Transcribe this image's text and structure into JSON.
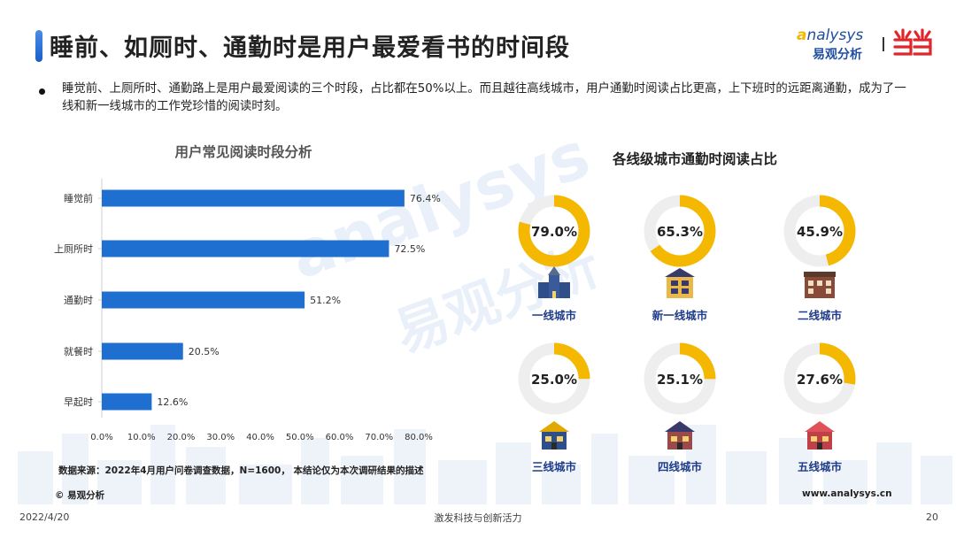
{
  "title": "睡前、如厕时、通勤时是用户最爱看书的时间段",
  "brand": {
    "logo_en_prefix": "a",
    "logo_en_rest": "nalysys",
    "logo_cn": "易观分析",
    "partner_logo_icon": "dangdang-logo-icon",
    "accent_color": "#1f6fd1"
  },
  "bullet": "睡觉前、上厕所时、通勤路上是用户最爱阅读的三个时段，占比都在50%以上。而且越往高线城市，用户通勤时阅读占比更高，上下班时的远距离通勤，成为了一线和新一线城市的工作党珍惜的阅读时刻。",
  "chart_data": [
    {
      "type": "bar",
      "orientation": "horizontal",
      "title": "用户常见阅读时段分析",
      "categories": [
        "睡觉前",
        "上厕所时",
        "通勤时",
        "就餐时",
        "早起时"
      ],
      "values": [
        76.4,
        72.5,
        51.2,
        20.5,
        12.6
      ],
      "value_labels": [
        "76.4%",
        "72.5%",
        "51.2%",
        "20.5%",
        "12.6%"
      ],
      "x_ticks": [
        "0.0%",
        "10.0%",
        "20.0%",
        "30.0%",
        "40.0%",
        "50.0%",
        "60.0%",
        "70.0%",
        "80.0%"
      ],
      "xlim": [
        0,
        80
      ],
      "bar_color": "#1f6fd1",
      "grid": false
    },
    {
      "type": "pie",
      "variant": "donut",
      "title": "各线级城市通勤时阅读占比",
      "items": [
        {
          "label": "一线城市",
          "value": 79.0,
          "text": "79.0%",
          "icon": "church-building-icon"
        },
        {
          "label": "新一线城市",
          "value": 65.3,
          "text": "65.3%",
          "icon": "mansion-building-icon"
        },
        {
          "label": "二线城市",
          "value": 45.9,
          "text": "45.9%",
          "icon": "townhouse-building-icon"
        },
        {
          "label": "三线城市",
          "value": 25.0,
          "text": "25.0%",
          "icon": "house-building-icon"
        },
        {
          "label": "四线城市",
          "value": 25.1,
          "text": "25.1%",
          "icon": "cottage-building-icon"
        },
        {
          "label": "五线城市",
          "value": 27.6,
          "text": "27.6%",
          "icon": "small-house-icon"
        }
      ],
      "ring_color": "#f5b800",
      "track_color": "#eeeeee"
    }
  ],
  "watermark_en": "analysys",
  "watermark_cn": "易观分析",
  "source": "数据来源：2022年4月用户问卷调查数据，N=1600， 本结论仅为本次调研结果的描述",
  "copyright": "© 易观分析",
  "website": "www.analysys.cn",
  "footer": {
    "date": "2022/4/20",
    "slogan": "激发科技与创新活力",
    "page": "20"
  }
}
